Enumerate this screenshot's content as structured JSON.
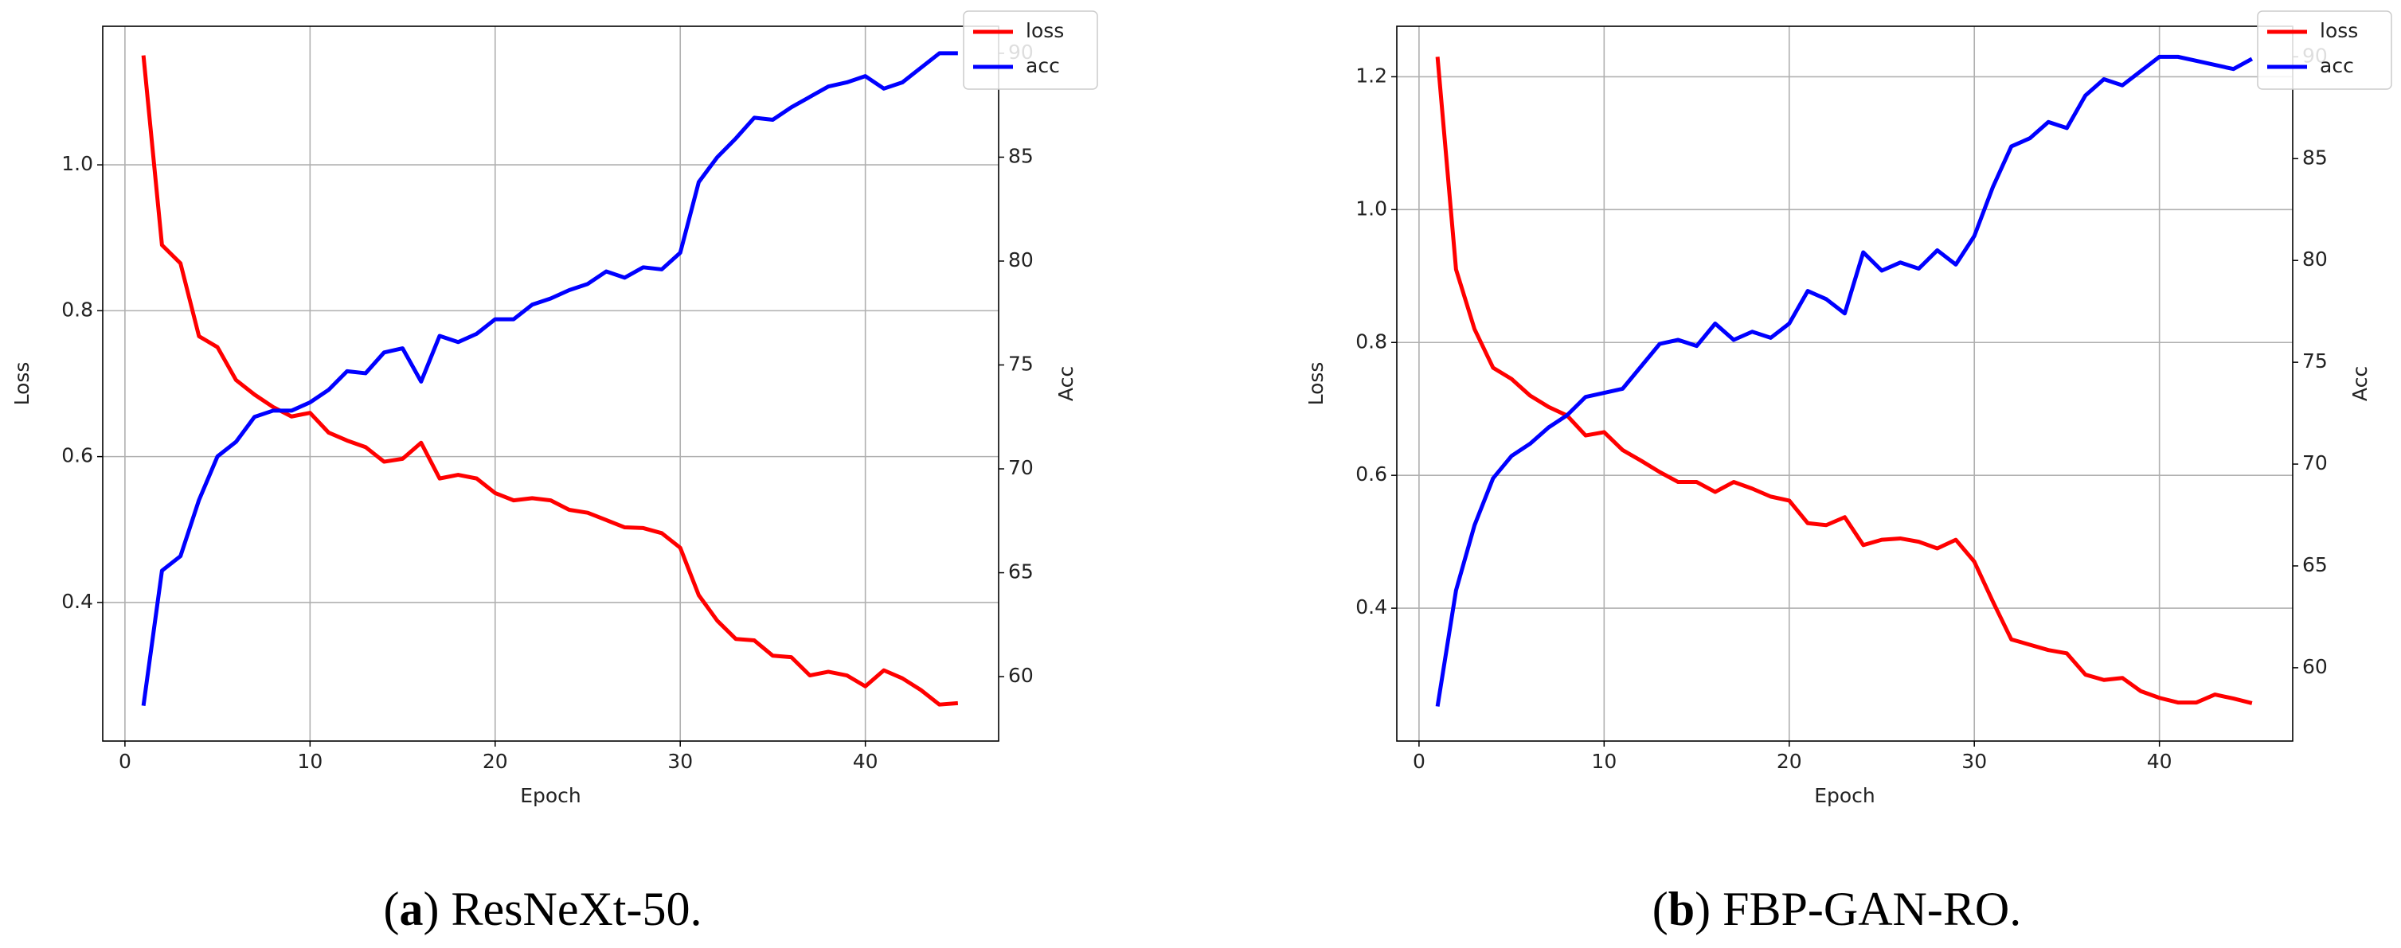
{
  "chart_data": [
    {
      "type": "line",
      "xlabel": "Epoch",
      "ylabel": "Loss",
      "y2label": "Acc",
      "caption": [
        "(",
        "a",
        ") ResNeXt-50."
      ],
      "x": [
        1,
        2,
        3,
        4,
        5,
        6,
        7,
        8,
        9,
        10,
        11,
        12,
        13,
        14,
        15,
        16,
        17,
        18,
        19,
        20,
        21,
        22,
        23,
        24,
        25,
        26,
        27,
        28,
        29,
        30,
        31,
        32,
        33,
        34,
        35,
        36,
        37,
        38,
        39,
        40,
        41,
        42,
        43,
        44,
        45
      ],
      "xlim": [
        -1.2,
        47.2
      ],
      "xticks": [
        0,
        10,
        20,
        30,
        40
      ],
      "ylim": [
        0.21,
        1.19
      ],
      "yticks": [
        0.4,
        0.6,
        0.8,
        {
          "value": 1,
          "label": "1.0"
        }
      ],
      "y2lim": [
        56.9,
        91.3
      ],
      "y2ticks": [
        60,
        65,
        70,
        75,
        80,
        85,
        90
      ],
      "grid": true,
      "legend": "upper right",
      "series": [
        {
          "name": "loss",
          "color": "#ff0000",
          "values": [
            1.15,
            0.89,
            0.865,
            0.765,
            0.75,
            0.705,
            0.685,
            0.668,
            0.655,
            0.66,
            0.633,
            0.622,
            0.613,
            0.593,
            0.597,
            0.619,
            0.57,
            0.575,
            0.57,
            0.55,
            0.54,
            0.543,
            0.54,
            0.527,
            0.523,
            0.513,
            0.503,
            0.502,
            0.495,
            0.475,
            0.41,
            0.375,
            0.35,
            0.348,
            0.327,
            0.325,
            0.3,
            0.305,
            0.3,
            0.285,
            0.307,
            0.296,
            0.28,
            0.26,
            0.262
          ]
        },
        {
          "name": "acc",
          "color": "#0000ff",
          "axis": "y2",
          "values": [
            58.6,
            65.1,
            65.8,
            68.5,
            70.6,
            71.3,
            72.5,
            72.8,
            72.8,
            73.2,
            73.8,
            74.7,
            74.6,
            75.6,
            75.8,
            74.2,
            76.4,
            76.1,
            76.5,
            77.2,
            77.2,
            77.9,
            78.2,
            78.6,
            78.9,
            79.5,
            79.2,
            79.7,
            79.6,
            80.4,
            83.8,
            85.0,
            85.9,
            86.9,
            86.8,
            87.4,
            87.9,
            88.4,
            88.6,
            88.9,
            88.3,
            88.6,
            89.3,
            90.0,
            90.0
          ]
        }
      ]
    },
    {
      "type": "line",
      "xlabel": "Epoch",
      "ylabel": "Loss",
      "y2label": "Acc",
      "caption": [
        "(",
        "b",
        ") FBP-GAN-RO."
      ],
      "x": [
        1,
        2,
        3,
        4,
        5,
        6,
        7,
        8,
        9,
        10,
        11,
        12,
        13,
        14,
        15,
        16,
        17,
        18,
        19,
        20,
        21,
        22,
        23,
        24,
        25,
        26,
        27,
        28,
        29,
        30,
        31,
        32,
        33,
        34,
        35,
        36,
        37,
        38,
        39,
        40,
        41,
        42,
        43,
        44,
        45
      ],
      "xlim": [
        -1.2,
        47.2
      ],
      "xticks": [
        0,
        10,
        20,
        30,
        40
      ],
      "ylim": [
        0.2,
        1.276
      ],
      "yticks": [
        0.4,
        0.6,
        0.8,
        {
          "value": 1,
          "label": "1.0"
        },
        1.2
      ],
      "y2lim": [
        56.4,
        91.5
      ],
      "y2ticks": [
        60,
        65,
        70,
        75,
        80,
        85,
        90
      ],
      "grid": true,
      "legend": "upper right",
      "series": [
        {
          "name": "loss",
          "color": "#ff0000",
          "values": [
            1.23,
            0.91,
            0.82,
            0.762,
            0.745,
            0.72,
            0.703,
            0.69,
            0.66,
            0.665,
            0.638,
            0.622,
            0.605,
            0.59,
            0.59,
            0.575,
            0.59,
            0.58,
            0.568,
            0.562,
            0.528,
            0.525,
            0.537,
            0.495,
            0.503,
            0.505,
            0.5,
            0.49,
            0.503,
            0.47,
            0.41,
            0.353,
            0.345,
            0.337,
            0.332,
            0.3,
            0.292,
            0.295,
            0.275,
            0.265,
            0.258,
            0.258,
            0.27,
            0.264,
            0.257
          ]
        },
        {
          "name": "acc",
          "color": "#0000ff",
          "axis": "y2",
          "values": [
            58.1,
            63.8,
            67.0,
            69.3,
            70.4,
            71.0,
            71.8,
            72.4,
            73.3,
            73.5,
            73.7,
            74.8,
            75.9,
            76.1,
            75.8,
            76.9,
            76.1,
            76.5,
            76.2,
            76.9,
            78.5,
            78.1,
            77.4,
            80.4,
            79.5,
            79.9,
            79.6,
            80.5,
            79.8,
            81.2,
            83.6,
            85.6,
            86.0,
            86.8,
            86.5,
            88.1,
            88.9,
            88.6,
            89.3,
            90.0,
            90.0,
            89.8,
            89.6,
            89.4,
            89.9
          ]
        }
      ]
    }
  ]
}
